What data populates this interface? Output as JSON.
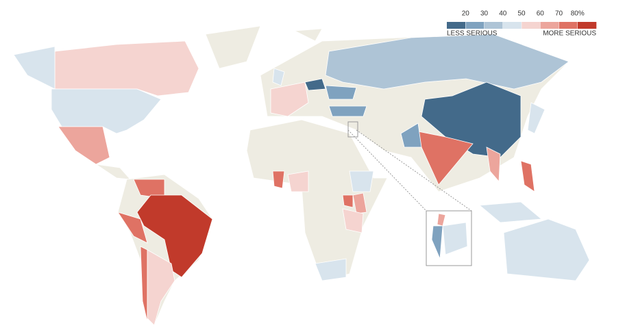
{
  "legend": {
    "ticks": [
      20,
      30,
      40,
      50,
      60,
      70,
      {
        "value": 80,
        "label": "80%"
      }
    ],
    "colors": [
      "#436a8a",
      "#7fa2bf",
      "#aec4d6",
      "#d8e4ed",
      "#f5d4d0",
      "#eca59c",
      "#df7264",
      "#c13a2b"
    ],
    "low_label": "LESS SERIOUS",
    "high_label": "MORE SERIOUS"
  }
}
